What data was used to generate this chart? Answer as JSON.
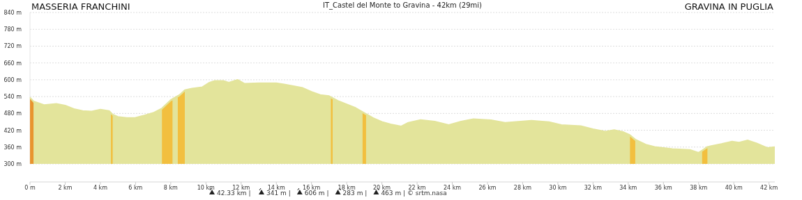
{
  "chart_data": {
    "type": "area",
    "title": "IT_Castel del Monte to Gravina - 42km (29mi)",
    "annotations": [
      "MASSERIA FRANCHINI",
      "GRAVINA IN PUGLIA",
      "42.33 km |",
      "341 m |",
      "606 m |",
      "283 m |",
      "463 m | © srtm.nasa"
    ],
    "x": [
      0,
      0.2,
      0.8,
      1.5,
      2,
      2.5,
      3,
      3.5,
      4,
      4.5,
      4.7,
      5,
      5.5,
      6,
      6.5,
      7,
      7.5,
      8,
      8.5,
      8.8,
      9.2,
      9.8,
      10.2,
      10.5,
      11,
      11.3,
      11.8,
      12.2,
      13,
      14,
      14.5,
      15.5,
      16,
      16.5,
      17,
      17.5,
      18.5,
      19,
      19.5,
      20,
      20.5,
      21.1,
      21.5,
      22.2,
      23,
      23.8,
      24.5,
      25.2,
      26.2,
      27,
      28.5,
      29.5,
      30.2,
      31.3,
      32,
      32.7,
      33.2,
      33.7,
      34.1,
      34.4,
      35,
      35.5,
      36.5,
      37.5,
      38,
      38.2,
      38.5,
      39.3,
      39.9,
      40.3,
      40.8,
      41.3,
      41.9,
      42.33
    ],
    "series": [
      {
        "color": "#e3e49b",
        "values": [
          537,
          523,
          510,
          514,
          508,
          496,
          489,
          487,
          494,
          489,
          476,
          468,
          464,
          465,
          473,
          482,
          498,
          528,
          546,
          563,
          569,
          574,
          590,
          596,
          596,
          590,
          600,
          586,
          588,
          588,
          583,
          571,
          557,
          546,
          542,
          525,
          500,
          482,
          464,
          450,
          441,
          434,
          447,
          457,
          451,
          439,
          451,
          460,
          456,
          447,
          454,
          449,
          439,
          435,
          424,
          415,
          421,
          414,
          403,
          387,
          369,
          361,
          353,
          350,
          340,
          348,
          361,
          371,
          380,
          376,
          384,
          373,
          357,
          360
        ]
      }
    ],
    "bands": [
      {
        "axis": "x",
        "from": 0,
        "to": 0.2,
        "color": "#e8942e"
      },
      {
        "axis": "x",
        "from": 4.6,
        "to": 4.7,
        "color": "#f2bf3f"
      },
      {
        "axis": "x",
        "from": 7.5,
        "to": 8.1,
        "color": "#f2bf3f"
      },
      {
        "axis": "x",
        "from": 8.4,
        "to": 8.8,
        "color": "#f2bf3f"
      },
      {
        "axis": "x",
        "from": 17.1,
        "to": 17.2,
        "color": "#f2bf3f"
      },
      {
        "axis": "x",
        "from": 18.9,
        "to": 19.1,
        "color": "#f2bf3f"
      },
      {
        "axis": "x",
        "from": 34.1,
        "to": 34.4,
        "color": "#f2bf3f"
      },
      {
        "axis": "x",
        "from": 38.2,
        "to": 38.5,
        "color": "#f2bf3f"
      }
    ],
    "xlim": [
      0,
      42.33
    ],
    "ylim": [
      300,
      840
    ],
    "xticks": [
      {
        "value": 0,
        "label": "0 m"
      },
      {
        "value": 2,
        "label": "2 km"
      },
      {
        "value": 4,
        "label": "4 km"
      },
      {
        "value": 6,
        "label": "6 km"
      },
      {
        "value": 8,
        "label": "8 km"
      },
      {
        "value": 10,
        "label": "10 km"
      },
      {
        "value": 12,
        "label": "12 km"
      },
      {
        "value": 14,
        "label": "14 km"
      },
      {
        "value": 16,
        "label": "16 km"
      },
      {
        "value": 18,
        "label": "18 km"
      },
      {
        "value": 20,
        "label": "20 km"
      },
      {
        "value": 22,
        "label": "22 km"
      },
      {
        "value": 24,
        "label": "24 km"
      },
      {
        "value": 26,
        "label": "26 km"
      },
      {
        "value": 28,
        "label": "28 km"
      },
      {
        "value": 30,
        "label": "30 km"
      },
      {
        "value": 32,
        "label": "32 km"
      },
      {
        "value": 34,
        "label": "34 km"
      },
      {
        "value": 36,
        "label": "36 km"
      },
      {
        "value": 38,
        "label": "38 km"
      },
      {
        "value": 40,
        "label": "40 km"
      },
      {
        "value": 42,
        "label": "42 km"
      }
    ],
    "yticks": [
      {
        "value": 300,
        "label": "300 m"
      },
      {
        "value": 360,
        "label": "360 m"
      },
      {
        "value": 420,
        "label": "420 m"
      },
      {
        "value": 480,
        "label": "480 m"
      },
      {
        "value": 540,
        "label": "540 m"
      },
      {
        "value": 600,
        "label": "600 m"
      },
      {
        "value": 660,
        "label": "660 m"
      },
      {
        "value": 720,
        "label": "720 m"
      },
      {
        "value": 780,
        "label": "780 m"
      },
      {
        "value": 840,
        "label": "840 m"
      }
    ],
    "grid": "y"
  }
}
